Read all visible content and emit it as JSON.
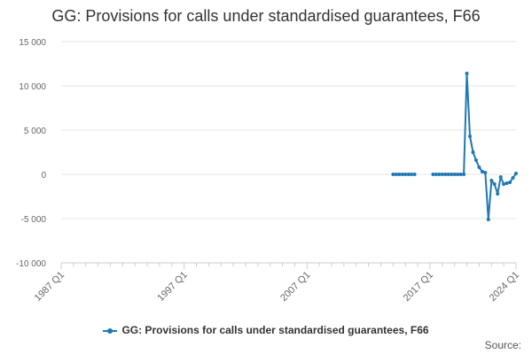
{
  "chart_data": {
    "type": "line",
    "title": "GG: Provisions for calls under standardised guarantees, F66",
    "xlabel": "",
    "ylabel": "",
    "ylim": [
      -10000,
      15000
    ],
    "y_ticks": [
      "15 000",
      "10 000",
      "5 000",
      "0",
      "-5 000",
      "-10 000"
    ],
    "y_tick_values": [
      15000,
      10000,
      5000,
      0,
      -5000,
      -10000
    ],
    "x_ticks": [
      "1987 Q1",
      "1997 Q1",
      "2007 Q1",
      "2017 Q1",
      "2024 Q1"
    ],
    "x_tick_years": [
      1987,
      1997,
      2007,
      2017,
      2024
    ],
    "xlim": [
      "1987 Q1",
      "2024 Q1"
    ],
    "grid": "horizontal",
    "legend_position": "bottom",
    "source_label": "Source:",
    "series": [
      {
        "name": "GG: Provisions for calls under standardised guarantees, F66",
        "color": "#1f78b4",
        "segments": [
          [
            {
              "x": "2014 Q1",
              "y": 0
            },
            {
              "x": "2014 Q2",
              "y": 0
            },
            {
              "x": "2014 Q3",
              "y": 0
            },
            {
              "x": "2014 Q4",
              "y": 0
            },
            {
              "x": "2015 Q1",
              "y": 0
            },
            {
              "x": "2015 Q2",
              "y": 0
            },
            {
              "x": "2015 Q3",
              "y": 0
            },
            {
              "x": "2015 Q4",
              "y": 0
            }
          ],
          [
            {
              "x": "2017 Q2",
              "y": 0
            },
            {
              "x": "2017 Q3",
              "y": 0
            },
            {
              "x": "2017 Q4",
              "y": 0
            },
            {
              "x": "2018 Q1",
              "y": 0
            },
            {
              "x": "2018 Q2",
              "y": 0
            },
            {
              "x": "2018 Q3",
              "y": 0
            },
            {
              "x": "2018 Q4",
              "y": 0
            },
            {
              "x": "2019 Q1",
              "y": 0
            },
            {
              "x": "2019 Q2",
              "y": 0
            },
            {
              "x": "2019 Q3",
              "y": 0
            },
            {
              "x": "2019 Q4",
              "y": 0
            },
            {
              "x": "2020 Q1",
              "y": 11400
            },
            {
              "x": "2020 Q2",
              "y": 4300
            },
            {
              "x": "2020 Q3",
              "y": 2500
            },
            {
              "x": "2020 Q4",
              "y": 1600
            },
            {
              "x": "2021 Q1",
              "y": 800
            },
            {
              "x": "2021 Q2",
              "y": 300
            },
            {
              "x": "2021 Q3",
              "y": 200
            },
            {
              "x": "2021 Q4",
              "y": -5100
            },
            {
              "x": "2022 Q1",
              "y": -700
            },
            {
              "x": "2022 Q2",
              "y": -1100
            },
            {
              "x": "2022 Q3",
              "y": -2200
            },
            {
              "x": "2022 Q4",
              "y": -300
            },
            {
              "x": "2023 Q1",
              "y": -1100
            },
            {
              "x": "2023 Q2",
              "y": -1000
            },
            {
              "x": "2023 Q3",
              "y": -900
            },
            {
              "x": "2023 Q4",
              "y": -400
            },
            {
              "x": "2024 Q1",
              "y": 100
            }
          ]
        ]
      }
    ]
  }
}
